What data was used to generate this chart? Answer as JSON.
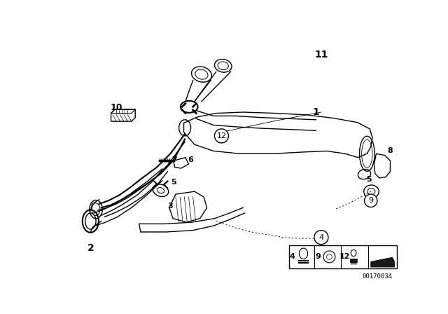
{
  "bg_color": "#ffffff",
  "line_color": "#000000",
  "fig_width": 6.4,
  "fig_height": 4.48,
  "dpi": 100,
  "catalog_number": "00170034"
}
